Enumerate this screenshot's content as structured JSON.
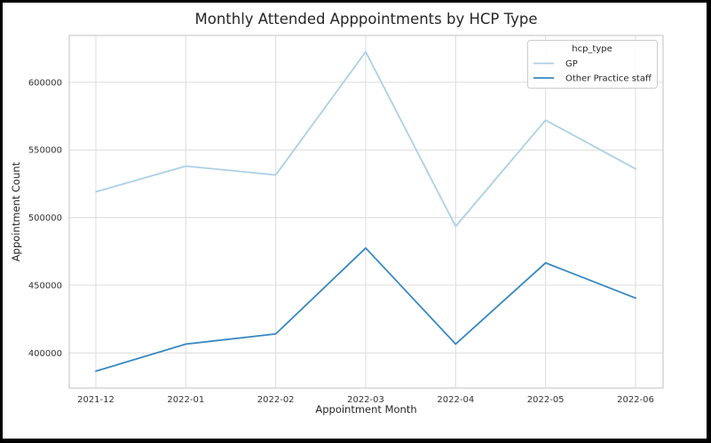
{
  "chart_data": {
    "type": "line",
    "title": "Monthly Attended Apppointments by HCP Type",
    "xlabel": "Appointment Month",
    "ylabel": "Appointment Count",
    "categories": [
      "2021-12",
      "2022-01",
      "2022-02",
      "2022-03",
      "2022-04",
      "2022-05",
      "2022-06"
    ],
    "series": [
      {
        "name": "GP",
        "color": "#abd0e6",
        "values": [
          519000,
          538000,
          531500,
          622500,
          493500,
          572000,
          536000
        ]
      },
      {
        "name": "Other Practice staff",
        "color": "#3787c0",
        "values": [
          386500,
          406500,
          414000,
          477500,
          406500,
          466500,
          440500
        ]
      }
    ],
    "legend": {
      "title": "hcp_type",
      "position": "upper right"
    },
    "yticks": [
      400000,
      450000,
      500000,
      550000,
      600000
    ],
    "ylim": [
      374000,
      634600
    ],
    "grid": true,
    "grid_color": "#dcdcdc",
    "axis_color": "#cccccc",
    "text_color": "#262626",
    "tick_color": "#333333"
  }
}
